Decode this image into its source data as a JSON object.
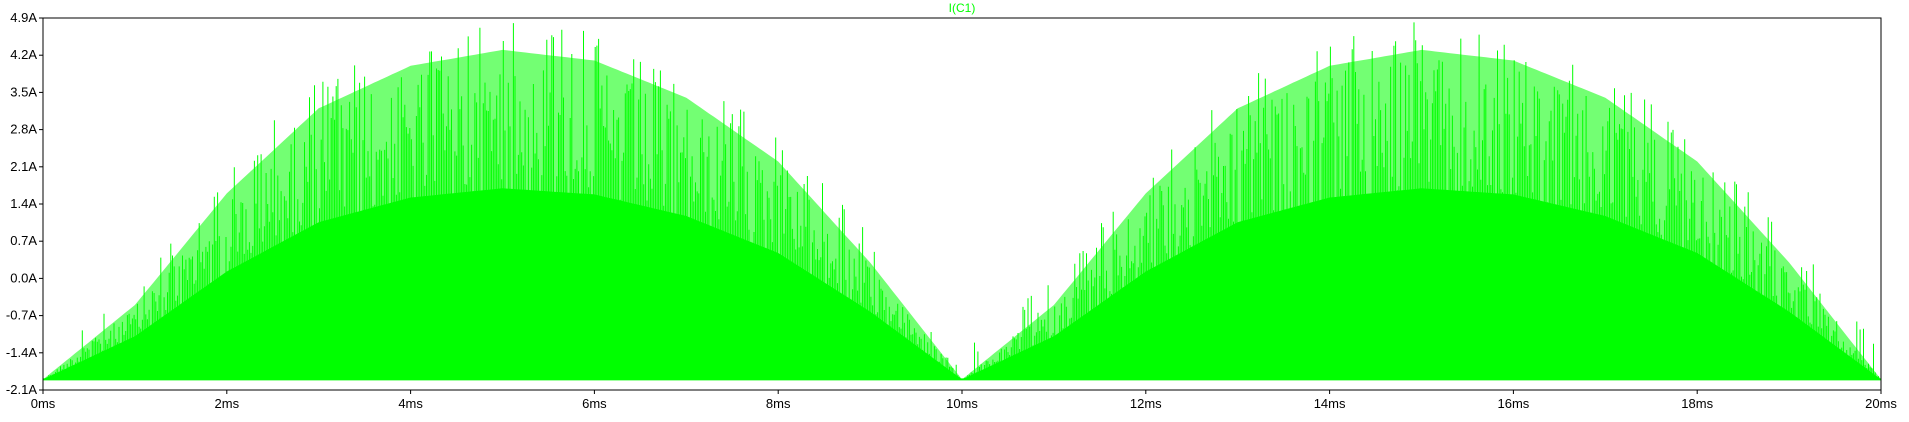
{
  "chart_data": {
    "type": "line",
    "title": "I(C1)",
    "xlabel": "",
    "ylabel": "",
    "x_range_ms": [
      0,
      20
    ],
    "ylim": [
      -2.1,
      4.9
    ],
    "x_ticks": [
      "0ms",
      "2ms",
      "4ms",
      "6ms",
      "8ms",
      "10ms",
      "12ms",
      "14ms",
      "16ms",
      "18ms",
      "20ms"
    ],
    "x_tick_values": [
      0,
      2,
      4,
      6,
      8,
      10,
      12,
      14,
      16,
      18,
      20
    ],
    "y_ticks": [
      "4.9A",
      "4.2A",
      "3.5A",
      "2.8A",
      "2.1A",
      "1.4A",
      "0.7A",
      "0.0A",
      "-0.7A",
      "-1.4A",
      "-2.1A"
    ],
    "y_tick_values": [
      4.9,
      4.2,
      3.5,
      2.8,
      2.1,
      1.4,
      0.7,
      0.0,
      -0.7,
      -1.4,
      -2.1
    ],
    "grid": false,
    "series": [
      {
        "name": "I(C1)",
        "color": "#00ff00",
        "description_points": {
          "envelope_x": [
            0,
            1,
            2,
            3,
            4,
            5,
            6,
            7,
            8,
            9,
            10,
            11,
            12,
            13,
            14,
            15,
            16,
            17,
            18,
            19,
            20
          ],
          "envelope_upper": [
            -1.9,
            -0.5,
            1.6,
            3.2,
            4.0,
            4.3,
            4.1,
            3.4,
            2.2,
            0.3,
            -1.9,
            -0.5,
            1.6,
            3.2,
            4.0,
            4.3,
            4.1,
            3.4,
            2.2,
            0.3,
            -1.9
          ],
          "baseline": -1.9
        }
      }
    ]
  }
}
